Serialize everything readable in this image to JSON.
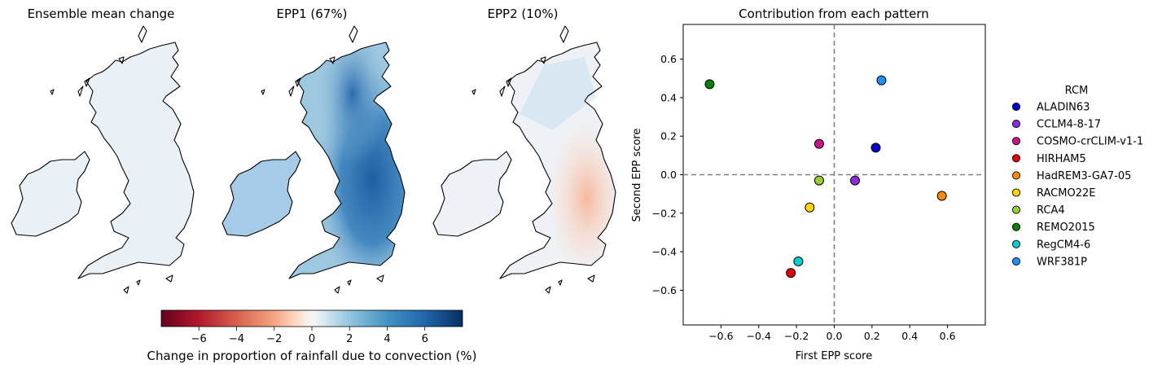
{
  "maps": [
    {
      "title": "Ensemble mean change",
      "shading": "mean"
    },
    {
      "title": "EPP1 (67%)",
      "shading": "epp1"
    },
    {
      "title": "EPP2 (10%)",
      "shading": "epp2"
    }
  ],
  "colorbar": {
    "label": "Change in proportion of rainfall due to convection (%)",
    "range": [
      -8,
      8
    ],
    "ticks": [
      -6,
      -4,
      -2,
      0,
      2,
      4,
      6
    ],
    "tick_labels": [
      "−6",
      "−4",
      "−2",
      "0",
      "2",
      "4",
      "6"
    ],
    "colormap": "RdBu"
  },
  "chart_data": {
    "type": "scatter",
    "title": "Contribution from each pattern",
    "xlabel": "First EPP score",
    "ylabel": "Second EPP score",
    "xlim": [
      -0.8,
      0.8
    ],
    "ylim": [
      -0.78,
      0.78
    ],
    "xticks": [
      -0.6,
      -0.4,
      -0.2,
      0.0,
      0.2,
      0.4,
      0.6
    ],
    "yticks": [
      -0.6,
      -0.4,
      -0.2,
      0.0,
      0.2,
      0.4,
      0.6
    ],
    "xtick_labels": [
      "−0.6",
      "−0.4",
      "−0.2",
      "0.0",
      "0.2",
      "0.4",
      "0.6"
    ],
    "ytick_labels": [
      "−0.6",
      "−0.4",
      "−0.2",
      "0.0",
      "0.2",
      "0.4",
      "0.6"
    ],
    "reference_lines": {
      "x": 0,
      "y": 0,
      "style": "dashed",
      "color": "#808080"
    },
    "legend_title": "RCM",
    "legend_placement": "right, outside",
    "series": [
      {
        "name": "ALADIN63",
        "x": 0.22,
        "y": 0.14,
        "color": "#0000cc"
      },
      {
        "name": "CCLM4-8-17",
        "x": 0.11,
        "y": -0.03,
        "color": "#8a2be2"
      },
      {
        "name": "COSMO-crCLIM-v1-1",
        "x": -0.08,
        "y": 0.16,
        "color": "#c71585"
      },
      {
        "name": "HIRHAM5",
        "x": -0.23,
        "y": -0.51,
        "color": "#e0000a"
      },
      {
        "name": "HadREM3-GA7-05",
        "x": 0.57,
        "y": -0.11,
        "color": "#ff8c00"
      },
      {
        "name": "RACMO22E",
        "x": -0.13,
        "y": -0.17,
        "color": "#ffd700"
      },
      {
        "name": "RCA4",
        "x": -0.08,
        "y": -0.03,
        "color": "#9acd32"
      },
      {
        "name": "REMO2015",
        "x": -0.66,
        "y": 0.47,
        "color": "#008000"
      },
      {
        "name": "RegCM4-6",
        "x": -0.19,
        "y": -0.45,
        "color": "#00ced1"
      },
      {
        "name": "WRF381P",
        "x": 0.25,
        "y": 0.49,
        "color": "#1e90ff"
      }
    ]
  }
}
